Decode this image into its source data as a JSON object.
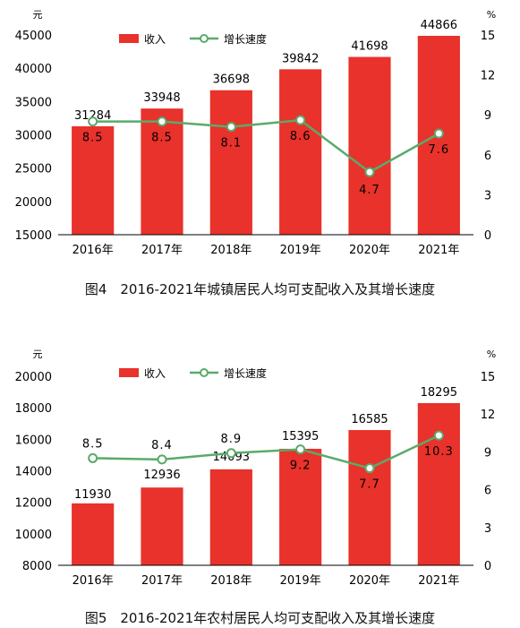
{
  "colors": {
    "bar": "#e8322b",
    "line": "#5aaa6a",
    "axis": "#000000"
  },
  "chart_data": [
    {
      "type": "bar",
      "caption": "图4　2016-2021年城镇居民人均可支配收入及其增长速度",
      "left_unit": "元",
      "right_unit": "%",
      "categories": [
        "2016年",
        "2017年",
        "2018年",
        "2019年",
        "2020年",
        "2021年"
      ],
      "ylim": [
        15000,
        45000
      ],
      "yticks": [
        15000,
        20000,
        25000,
        30000,
        35000,
        40000,
        45000
      ],
      "y2lim": [
        0,
        15
      ],
      "y2ticks": [
        0,
        3,
        6,
        9,
        12,
        15
      ],
      "series": [
        {
          "name": "收入",
          "type": "bar",
          "axis": "left",
          "values": [
            31284,
            33948,
            36698,
            39842,
            41698,
            44866
          ]
        },
        {
          "name": "增长速度",
          "type": "line",
          "axis": "right",
          "values": [
            8.5,
            8.5,
            8.1,
            8.6,
            4.7,
            7.6
          ]
        }
      ],
      "legend_position": "top-left"
    },
    {
      "type": "bar",
      "caption": "图5　2016-2021年农村居民人均可支配收入及其增长速度",
      "left_unit": "元",
      "right_unit": "%",
      "categories": [
        "2016年",
        "2017年",
        "2018年",
        "2019年",
        "2020年",
        "2021年"
      ],
      "ylim": [
        8000,
        20000
      ],
      "yticks": [
        8000,
        10000,
        12000,
        14000,
        16000,
        18000,
        20000
      ],
      "y2lim": [
        0,
        15
      ],
      "y2ticks": [
        0,
        3,
        6,
        9,
        12,
        15
      ],
      "series": [
        {
          "name": "收入",
          "type": "bar",
          "axis": "left",
          "values": [
            11930,
            12936,
            14093,
            15395,
            16585,
            18295
          ]
        },
        {
          "name": "增长速度",
          "type": "line",
          "axis": "right",
          "values": [
            8.5,
            8.4,
            8.9,
            9.2,
            7.7,
            10.3
          ]
        }
      ],
      "legend_position": "top-left"
    }
  ]
}
